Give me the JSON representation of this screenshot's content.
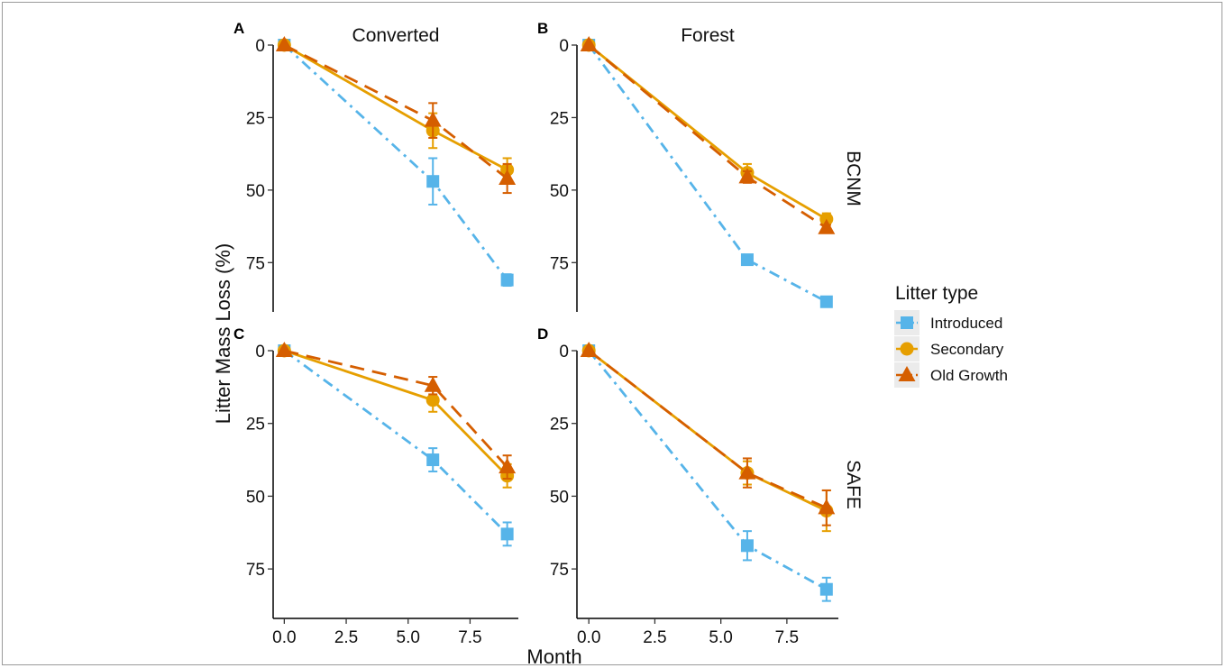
{
  "chart_data": {
    "type": "line",
    "xlabel": "Month",
    "ylabel": "Litter Mass Loss (%)",
    "y_reversed": true,
    "xlim": [
      -0.45,
      9.45
    ],
    "ylim": [
      0,
      92
    ],
    "x_ticks": [
      0.0,
      2.5,
      5.0,
      7.5
    ],
    "x_tick_labels": [
      "0.0",
      "2.5",
      "5.0",
      "7.5"
    ],
    "y_ticks": [
      0,
      25,
      50,
      75
    ],
    "y_tick_labels": [
      "0",
      "25",
      "50",
      "75"
    ],
    "column_labels": [
      "Converted",
      "Forest"
    ],
    "row_labels": [
      "BCNM",
      "SAFE"
    ],
    "legend": {
      "title": "Litter type",
      "placement": "right",
      "entries": [
        "Introduced",
        "Secondary",
        "Old Growth"
      ]
    },
    "series_styles": [
      {
        "name": "Introduced",
        "color": "#56B4E9",
        "marker": "square",
        "dash": "dashdot"
      },
      {
        "name": "Secondary",
        "color": "#E69F00",
        "marker": "circle",
        "dash": "solid"
      },
      {
        "name": "Old Growth",
        "color": "#D55E00",
        "marker": "triangle",
        "dash": "dashed"
      }
    ],
    "panels": [
      {
        "letter": "A",
        "column": "Converted",
        "row": "BCNM",
        "series": [
          {
            "name": "Introduced",
            "x": [
              0,
              6,
              9
            ],
            "y": [
              0,
              47,
              81
            ],
            "err": [
              0,
              8,
              2
            ]
          },
          {
            "name": "Secondary",
            "x": [
              0,
              6,
              9
            ],
            "y": [
              0,
              29.5,
              43
            ],
            "err": [
              0,
              6,
              4
            ]
          },
          {
            "name": "Old Growth",
            "x": [
              0,
              6,
              9
            ],
            "y": [
              0,
              26,
              46
            ],
            "err": [
              0,
              6,
              5
            ]
          }
        ]
      },
      {
        "letter": "B",
        "column": "Forest",
        "row": "BCNM",
        "series": [
          {
            "name": "Introduced",
            "x": [
              0,
              6,
              9
            ],
            "y": [
              0,
              74,
              88.5
            ],
            "err": [
              0,
              1,
              1
            ]
          },
          {
            "name": "Secondary",
            "x": [
              0,
              6,
              9
            ],
            "y": [
              0,
              44,
              60
            ],
            "err": [
              0,
              3,
              2
            ]
          },
          {
            "name": "Old Growth",
            "x": [
              0,
              6,
              9
            ],
            "y": [
              0,
              45.5,
              63
            ],
            "err": [
              0,
              2,
              1
            ]
          }
        ]
      },
      {
        "letter": "C",
        "column": "Converted",
        "row": "SAFE",
        "series": [
          {
            "name": "Introduced",
            "x": [
              0,
              6,
              9
            ],
            "y": [
              0,
              37.5,
              63
            ],
            "err": [
              0,
              4,
              4
            ]
          },
          {
            "name": "Secondary",
            "x": [
              0,
              6,
              9
            ],
            "y": [
              0,
              17,
              43
            ],
            "err": [
              0,
              4,
              4
            ]
          },
          {
            "name": "Old Growth",
            "x": [
              0,
              6,
              9
            ],
            "y": [
              0,
              12,
              40
            ],
            "err": [
              0,
              3,
              4
            ]
          }
        ]
      },
      {
        "letter": "D",
        "column": "Forest",
        "row": "SAFE",
        "series": [
          {
            "name": "Introduced",
            "x": [
              0,
              6,
              9
            ],
            "y": [
              0,
              67,
              82
            ],
            "err": [
              0,
              5,
              4
            ]
          },
          {
            "name": "Secondary",
            "x": [
              0,
              6,
              9
            ],
            "y": [
              0,
              42,
              55
            ],
            "err": [
              0,
              4,
              7
            ]
          },
          {
            "name": "Old Growth",
            "x": [
              0,
              6,
              9
            ],
            "y": [
              0,
              42,
              54
            ],
            "err": [
              0,
              5,
              6
            ]
          }
        ]
      }
    ]
  }
}
